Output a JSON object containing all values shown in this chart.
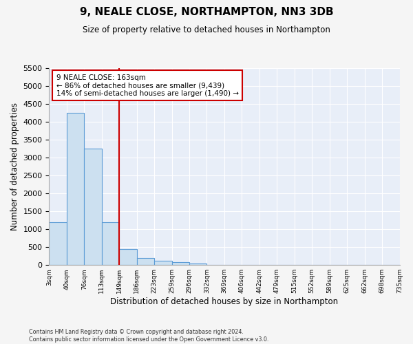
{
  "title": "9, NEALE CLOSE, NORTHAMPTON, NN3 3DB",
  "subtitle": "Size of property relative to detached houses in Northampton",
  "xlabel": "Distribution of detached houses by size in Northampton",
  "ylabel": "Number of detached properties",
  "bin_labels": [
    "3sqm",
    "40sqm",
    "76sqm",
    "113sqm",
    "149sqm",
    "186sqm",
    "223sqm",
    "259sqm",
    "296sqm",
    "332sqm",
    "369sqm",
    "406sqm",
    "442sqm",
    "479sqm",
    "515sqm",
    "552sqm",
    "589sqm",
    "625sqm",
    "662sqm",
    "698sqm",
    "735sqm"
  ],
  "bar_values": [
    1200,
    4250,
    3250,
    1200,
    450,
    200,
    120,
    75,
    50,
    0,
    0,
    0,
    0,
    0,
    0,
    0,
    0,
    0,
    0,
    0
  ],
  "bar_color": "#cce0f0",
  "bar_edge_color": "#5b9bd5",
  "vline_color": "#cc0000",
  "annotation_text": "9 NEALE CLOSE: 163sqm\n← 86% of detached houses are smaller (9,439)\n14% of semi-detached houses are larger (1,490) →",
  "annotation_box_color": "#ffffff",
  "annotation_box_edge_color": "#cc0000",
  "ylim": [
    0,
    5500
  ],
  "yticks": [
    0,
    500,
    1000,
    1500,
    2000,
    2500,
    3000,
    3500,
    4000,
    4500,
    5000,
    5500
  ],
  "background_color": "#e8eef8",
  "grid_color": "#ffffff",
  "footnote": "Contains HM Land Registry data © Crown copyright and database right 2024.\nContains public sector information licensed under the Open Government Licence v3.0."
}
